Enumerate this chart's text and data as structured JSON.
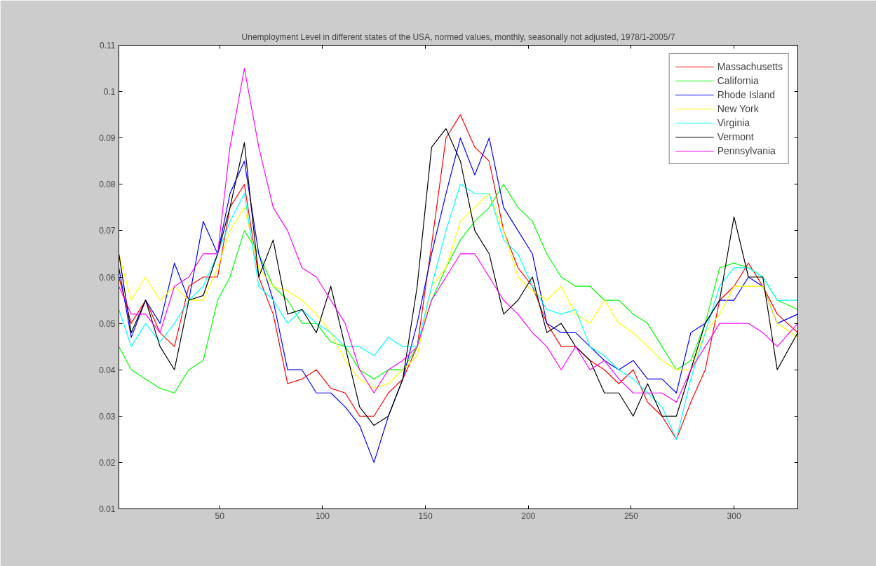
{
  "chart_data": {
    "type": "line",
    "title": "Unemployment Level in different states of the USA, normed values, monthly, seasonally not adjusted, 1978/1-2005/7",
    "x": [
      1,
      7,
      14,
      21,
      28,
      35,
      42,
      49,
      55,
      62,
      69,
      76,
      83,
      90,
      97,
      104,
      111,
      118,
      125,
      132,
      139,
      146,
      153,
      160,
      167,
      174,
      181,
      188,
      195,
      202,
      209,
      216,
      223,
      230,
      237,
      244,
      251,
      258,
      265,
      272,
      279,
      286,
      293,
      300,
      307,
      314,
      321,
      331
    ],
    "xlim": [
      1,
      331
    ],
    "xticks": [
      50,
      100,
      150,
      200,
      250,
      300
    ],
    "ylim": [
      0.01,
      0.11
    ],
    "yticks": [
      0.01,
      0.02,
      0.03,
      0.04,
      0.05,
      0.06,
      0.07,
      0.08,
      0.09,
      0.1,
      0.11
    ],
    "grid": false,
    "legend": "top right",
    "line_style": "solid",
    "series": [
      {
        "name": "Massachusetts",
        "color": "#ff0000",
        "values": [
          0.06,
          0.05,
          0.055,
          0.048,
          0.045,
          0.058,
          0.06,
          0.06,
          0.075,
          0.08,
          0.06,
          0.052,
          0.037,
          0.038,
          0.04,
          0.036,
          0.035,
          0.03,
          0.03,
          0.035,
          0.038,
          0.045,
          0.067,
          0.09,
          0.095,
          0.088,
          0.085,
          0.07,
          0.062,
          0.058,
          0.05,
          0.045,
          0.045,
          0.042,
          0.04,
          0.037,
          0.04,
          0.033,
          0.03,
          0.025,
          0.033,
          0.04,
          0.055,
          0.058,
          0.063,
          0.058,
          0.052,
          0.048
        ]
      },
      {
        "name": "California",
        "color": "#00ff00",
        "values": [
          0.045,
          0.04,
          0.038,
          0.036,
          0.035,
          0.04,
          0.042,
          0.055,
          0.06,
          0.07,
          0.065,
          0.058,
          0.055,
          0.05,
          0.05,
          0.046,
          0.045,
          0.04,
          0.038,
          0.04,
          0.04,
          0.045,
          0.055,
          0.062,
          0.068,
          0.072,
          0.075,
          0.08,
          0.075,
          0.072,
          0.065,
          0.06,
          0.058,
          0.058,
          0.055,
          0.055,
          0.052,
          0.05,
          0.045,
          0.04,
          0.042,
          0.05,
          0.062,
          0.063,
          0.062,
          0.06,
          0.055,
          0.053
        ]
      },
      {
        "name": "Rhode Island",
        "color": "#0000ff",
        "values": [
          0.062,
          0.047,
          0.055,
          0.05,
          0.063,
          0.055,
          0.072,
          0.065,
          0.078,
          0.085,
          0.065,
          0.055,
          0.04,
          0.04,
          0.035,
          0.035,
          0.032,
          0.028,
          0.02,
          0.03,
          0.038,
          0.05,
          0.065,
          0.078,
          0.09,
          0.082,
          0.09,
          0.075,
          0.07,
          0.065,
          0.05,
          0.048,
          0.048,
          0.045,
          0.042,
          0.04,
          0.042,
          0.038,
          0.038,
          0.035,
          0.048,
          0.05,
          0.055,
          0.055,
          0.06,
          0.058,
          0.05,
          0.052
        ]
      },
      {
        "name": "New York",
        "color": "#ffff00",
        "values": [
          0.065,
          0.055,
          0.06,
          0.055,
          0.058,
          0.055,
          0.055,
          0.062,
          0.07,
          0.075,
          0.062,
          0.058,
          0.057,
          0.055,
          0.052,
          0.048,
          0.042,
          0.038,
          0.036,
          0.037,
          0.04,
          0.043,
          0.058,
          0.062,
          0.072,
          0.075,
          0.078,
          0.07,
          0.06,
          0.057,
          0.055,
          0.058,
          0.052,
          0.05,
          0.055,
          0.05,
          0.048,
          0.045,
          0.042,
          0.04,
          0.04,
          0.048,
          0.052,
          0.058,
          0.058,
          0.058,
          0.05,
          0.047
        ]
      },
      {
        "name": "Virginia",
        "color": "#00ffff",
        "values": [
          0.053,
          0.045,
          0.05,
          0.046,
          0.05,
          0.055,
          0.058,
          0.065,
          0.072,
          0.078,
          0.058,
          0.055,
          0.05,
          0.053,
          0.05,
          0.048,
          0.045,
          0.045,
          0.043,
          0.047,
          0.045,
          0.045,
          0.058,
          0.07,
          0.08,
          0.078,
          0.078,
          0.068,
          0.065,
          0.058,
          0.053,
          0.052,
          0.053,
          0.045,
          0.043,
          0.04,
          0.038,
          0.035,
          0.032,
          0.025,
          0.038,
          0.048,
          0.058,
          0.062,
          0.062,
          0.06,
          0.055,
          0.055
        ]
      },
      {
        "name": "Vermont",
        "color": "#000000",
        "values": [
          0.065,
          0.048,
          0.055,
          0.045,
          0.04,
          0.055,
          0.056,
          0.065,
          0.075,
          0.089,
          0.06,
          0.068,
          0.052,
          0.053,
          0.048,
          0.058,
          0.045,
          0.032,
          0.028,
          0.03,
          0.038,
          0.058,
          0.088,
          0.092,
          0.085,
          0.07,
          0.065,
          0.052,
          0.055,
          0.06,
          0.048,
          0.05,
          0.045,
          0.042,
          0.035,
          0.035,
          0.03,
          0.037,
          0.03,
          0.03,
          0.04,
          0.05,
          0.055,
          0.073,
          0.06,
          0.06,
          0.04,
          0.048
        ]
      },
      {
        "name": "Pennsylvania",
        "color": "#ff00ff",
        "values": [
          0.058,
          0.052,
          0.052,
          0.048,
          0.058,
          0.06,
          0.065,
          0.065,
          0.088,
          0.105,
          0.088,
          0.075,
          0.07,
          0.062,
          0.06,
          0.055,
          0.05,
          0.04,
          0.035,
          0.04,
          0.042,
          0.045,
          0.055,
          0.06,
          0.065,
          0.065,
          0.06,
          0.055,
          0.052,
          0.048,
          0.045,
          0.04,
          0.045,
          0.04,
          0.042,
          0.038,
          0.035,
          0.035,
          0.035,
          0.033,
          0.04,
          0.045,
          0.05,
          0.05,
          0.05,
          0.048,
          0.045,
          0.05
        ]
      }
    ]
  }
}
